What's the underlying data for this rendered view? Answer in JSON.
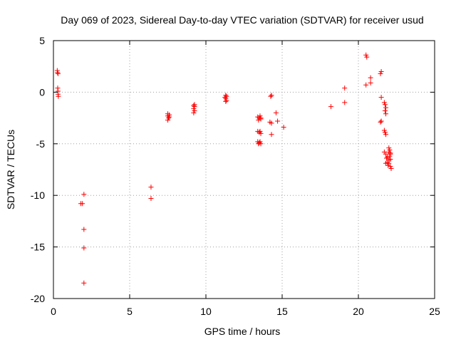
{
  "chart_data": {
    "type": "scatter",
    "title": "Day 069 of 2023, Sidereal Day-to-day VTEC variation (SDTVAR) for receiver usud",
    "xlabel": "GPS time / hours",
    "ylabel": "SDTVAR / TECUs",
    "xlim": [
      0,
      25
    ],
    "ylim": [
      -20,
      5
    ],
    "xticks": [
      0,
      5,
      10,
      15,
      20,
      25
    ],
    "yticks": [
      5,
      0,
      -5,
      -10,
      -15,
      -20
    ],
    "xtick_labels": [
      "0",
      "5",
      "10",
      "15",
      "20",
      "25"
    ],
    "ytick_labels": [
      "5",
      "0",
      "-5",
      "-10",
      "-15",
      "-20"
    ],
    "grid": true,
    "legend": "none",
    "marker": "+",
    "color": "#ff0000",
    "series": [
      {
        "name": "SDTVAR",
        "points": [
          [
            0.25,
            2.1
          ],
          [
            0.27,
            1.9
          ],
          [
            0.3,
            1.8
          ],
          [
            0.28,
            0.4
          ],
          [
            0.3,
            0.1
          ],
          [
            0.3,
            -0.2
          ],
          [
            0.32,
            -0.4
          ],
          [
            1.8,
            -10.8
          ],
          [
            1.9,
            -10.8
          ],
          [
            2.0,
            -9.9
          ],
          [
            2.0,
            -13.3
          ],
          [
            2.0,
            -15.1
          ],
          [
            2.0,
            -18.5
          ],
          [
            6.4,
            -9.2
          ],
          [
            6.4,
            -10.3
          ],
          [
            7.5,
            -2.1
          ],
          [
            7.5,
            -2.3
          ],
          [
            7.55,
            -2.5
          ],
          [
            7.6,
            -2.4
          ],
          [
            7.5,
            -2.7
          ],
          [
            7.6,
            -2.2
          ],
          [
            9.2,
            -1.3
          ],
          [
            9.25,
            -1.4
          ],
          [
            9.2,
            -1.6
          ],
          [
            9.25,
            -1.8
          ],
          [
            9.2,
            -2.0
          ],
          [
            9.25,
            -1.2
          ],
          [
            11.3,
            -0.3
          ],
          [
            11.35,
            -0.4
          ],
          [
            11.3,
            -0.6
          ],
          [
            11.35,
            -0.8
          ],
          [
            11.3,
            -0.9
          ],
          [
            11.25,
            -0.5
          ],
          [
            13.4,
            -2.4
          ],
          [
            13.5,
            -2.5
          ],
          [
            13.6,
            -2.5
          ],
          [
            13.45,
            -2.7
          ],
          [
            13.55,
            -2.3
          ],
          [
            13.6,
            -2.6
          ],
          [
            13.4,
            -3.8
          ],
          [
            13.5,
            -3.9
          ],
          [
            13.6,
            -4.0
          ],
          [
            13.55,
            -3.8
          ],
          [
            13.4,
            -4.8
          ],
          [
            13.5,
            -4.9
          ],
          [
            13.6,
            -5.0
          ],
          [
            13.55,
            -4.8
          ],
          [
            13.45,
            -5.0
          ],
          [
            14.3,
            -0.3
          ],
          [
            14.25,
            -0.4
          ],
          [
            14.2,
            -2.9
          ],
          [
            14.3,
            -3.0
          ],
          [
            14.6,
            -2.0
          ],
          [
            14.7,
            -2.8
          ],
          [
            14.3,
            -4.1
          ],
          [
            15.1,
            -3.4
          ],
          [
            18.2,
            -1.4
          ],
          [
            19.1,
            0.4
          ],
          [
            19.1,
            -1.0
          ],
          [
            20.5,
            3.6
          ],
          [
            20.55,
            3.4
          ],
          [
            20.5,
            0.7
          ],
          [
            20.8,
            1.4
          ],
          [
            20.8,
            0.9
          ],
          [
            21.5,
            2.0
          ],
          [
            21.45,
            1.8
          ],
          [
            21.5,
            -0.5
          ],
          [
            21.7,
            -1.0
          ],
          [
            21.75,
            -1.2
          ],
          [
            21.8,
            -1.5
          ],
          [
            21.75,
            -1.8
          ],
          [
            21.8,
            -2.1
          ],
          [
            21.5,
            -2.8
          ],
          [
            21.45,
            -2.9
          ],
          [
            21.7,
            -3.7
          ],
          [
            21.75,
            -3.9
          ],
          [
            21.8,
            -4.1
          ],
          [
            21.7,
            -5.8
          ],
          [
            21.8,
            -6.0
          ],
          [
            21.9,
            -6.3
          ],
          [
            22.0,
            -6.6
          ],
          [
            21.8,
            -6.9
          ],
          [
            21.95,
            -7.1
          ],
          [
            22.0,
            -5.4
          ],
          [
            22.05,
            -5.6
          ],
          [
            22.1,
            -5.9
          ],
          [
            22.05,
            -6.2
          ],
          [
            22.1,
            -6.5
          ],
          [
            22.0,
            -6.9
          ],
          [
            22.1,
            -7.2
          ],
          [
            22.15,
            -7.4
          ],
          [
            21.9,
            -6.8
          ],
          [
            22.0,
            -5.8
          ],
          [
            21.85,
            -6.4
          ],
          [
            22.1,
            -6.0
          ]
        ]
      }
    ]
  }
}
